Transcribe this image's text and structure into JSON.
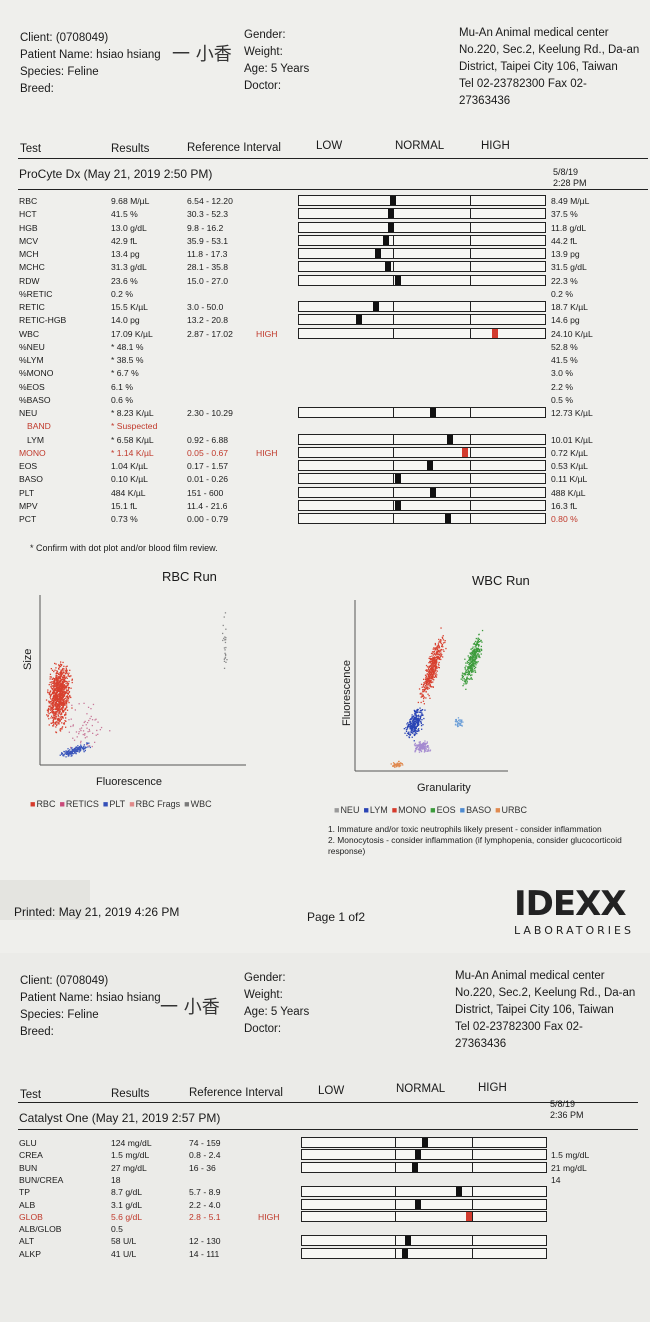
{
  "header": {
    "client_label": "Client:",
    "client_id": "(0708049)",
    "patient_label": "Patient Name:",
    "patient_name": "hsiao hsiang",
    "species_label": "Species:",
    "species": "Feline",
    "breed_label": "Breed:",
    "gender_label": "Gender:",
    "weight_label": "Weight:",
    "age_label": "Age:",
    "age": "5 Years",
    "doctor_label": "Doctor:",
    "clinic_name": "Mu-An Animal medical center",
    "clinic_addr1": "No.220, Sec.2, Keelung Rd., Da-an",
    "clinic_addr2": "District, Taipei City 106, Taiwan",
    "clinic_tel": "Tel 02-23782300  Fax 02-",
    "clinic_fax": "27363436",
    "signature": "一 小香"
  },
  "columns": {
    "test": "Test",
    "results": "Results",
    "reference": "Reference Interval",
    "low": "LOW",
    "normal": "NORMAL",
    "high": "HIGH"
  },
  "page1": {
    "section_title": "ProCyte Dx (May 21, 2019 2:50 PM)",
    "prev_date": "5/8/19",
    "prev_time": "2:28 PM",
    "rows": [
      {
        "test": "RBC",
        "result": "9.68 M/µL",
        "ref": "6.54 - 12.20",
        "flag": "",
        "prev": "8.49 M/µL",
        "pos": 0.38
      },
      {
        "test": "HCT",
        "result": "41.5 %",
        "ref": "30.3 - 52.3",
        "flag": "",
        "prev": "37.5 %",
        "pos": 0.37
      },
      {
        "test": "HGB",
        "result": "13.0 g/dL",
        "ref": "9.8 - 16.2",
        "flag": "",
        "prev": "11.8 g/dL",
        "pos": 0.37
      },
      {
        "test": "MCV",
        "result": "42.9 fL",
        "ref": "35.9 - 53.1",
        "flag": "",
        "prev": "44.2 fL",
        "pos": 0.35
      },
      {
        "test": "MCH",
        "result": "13.4 pg",
        "ref": "11.8 - 17.3",
        "flag": "",
        "prev": "13.9 pg",
        "pos": 0.32
      },
      {
        "test": "MCHC",
        "result": "31.3 g/dL",
        "ref": "28.1 - 35.8",
        "flag": "",
        "prev": "31.5 g/dL",
        "pos": 0.36
      },
      {
        "test": "RDW",
        "result": "23.6 %",
        "ref": "15.0 - 27.0",
        "flag": "",
        "prev": "22.3 %",
        "pos": 0.4
      },
      {
        "test": "%RETIC",
        "result": "0.2 %",
        "ref": "",
        "flag": "",
        "prev": "0.2 %",
        "pos": null
      },
      {
        "test": "RETIC",
        "result": "15.5 K/µL",
        "ref": "3.0 - 50.0",
        "flag": "",
        "prev": "18.7 K/µL",
        "pos": 0.31
      },
      {
        "test": "RETIC-HGB",
        "result": "14.0 pg",
        "ref": "13.2 - 20.8",
        "flag": "",
        "prev": "14.6 pg",
        "pos": 0.24
      },
      {
        "test": "WBC",
        "result": "17.09 K/µL",
        "ref": "2.87 - 17.02",
        "flag": "HIGH",
        "prev": "24.10 K/µL",
        "pos": 0.79
      },
      {
        "test": "%NEU",
        "result": "* 48.1 %",
        "ref": "",
        "flag": "",
        "prev": "52.8 %",
        "pos": null
      },
      {
        "test": "%LYM",
        "result": "* 38.5 %",
        "ref": "",
        "flag": "",
        "prev": "41.5 %",
        "pos": null
      },
      {
        "test": "%MONO",
        "result": "* 6.7 %",
        "ref": "",
        "flag": "",
        "prev": "3.0 %",
        "pos": null
      },
      {
        "test": "%EOS",
        "result": "6.1 %",
        "ref": "",
        "flag": "",
        "prev": "2.2 %",
        "pos": null
      },
      {
        "test": "%BASO",
        "result": "0.6 %",
        "ref": "",
        "flag": "",
        "prev": "0.5 %",
        "pos": null
      },
      {
        "test": "NEU",
        "result": "* 8.23 K/µL",
        "ref": "2.30 - 10.29",
        "flag": "",
        "prev": "12.73 K/µL",
        "pos": 0.54
      },
      {
        "test": "BAND",
        "result": "* Suspected",
        "ref": "",
        "flag": "",
        "prev": "",
        "pos": null,
        "red": true,
        "indent": true
      },
      {
        "test": "LYM",
        "result": "* 6.58 K/µL",
        "ref": "0.92 - 6.88",
        "flag": "",
        "prev": "10.01 K/µL",
        "pos": 0.61,
        "indent": true
      },
      {
        "test": "MONO",
        "result": "* 1.14 K/µL",
        "ref": "0.05 - 0.67",
        "flag": "HIGH",
        "prev": "0.72 K/µL",
        "pos": 0.67,
        "red": true
      },
      {
        "test": "EOS",
        "result": "1.04 K/µL",
        "ref": "0.17 - 1.57",
        "flag": "",
        "prev": "0.53 K/µL",
        "pos": 0.53
      },
      {
        "test": "BASO",
        "result": "0.10 K/µL",
        "ref": "0.01 - 0.26",
        "flag": "",
        "prev": "0.11 K/µL",
        "pos": 0.4
      },
      {
        "test": "PLT",
        "result": "484 K/µL",
        "ref": "151 - 600",
        "flag": "",
        "prev": "488 K/µL",
        "pos": 0.54
      },
      {
        "test": "MPV",
        "result": "15.1 fL",
        "ref": "11.4 - 21.6",
        "flag": "",
        "prev": "16.3 fL",
        "pos": 0.4
      },
      {
        "test": "PCT",
        "result": "0.73 %",
        "ref": "0.00 - 0.79",
        "flag": "",
        "prev": "0.80 %",
        "pos": 0.6,
        "prevred": true
      }
    ],
    "footnote": "* Confirm with dot plot and/or blood film review.",
    "rbc_title": "RBC Run",
    "rbc_xlabel": "Fluorescence",
    "rbc_ylabel": "Size",
    "rbc_legend": [
      "RBC",
      "RETICS",
      "PLT",
      "RBC Frags",
      "WBC"
    ],
    "wbc_title": "WBC Run",
    "wbc_xlabel": "Granularity",
    "wbc_ylabel": "Fluorescence",
    "wbc_legend": [
      "NEU",
      "LYM",
      "MONO",
      "EOS",
      "BASO",
      "URBC"
    ],
    "notes": [
      "1. Immature and/or toxic neutrophils likely present - consider inflammation",
      "2. Monocytosis - consider inflammation (if lymphopenia, consider glucocorticoid",
      "response)"
    ],
    "printed": "Printed: May 21, 2019 4:26 PM",
    "page_no": "Page 1 of2",
    "logo": "IDEXX",
    "logo_sub": "LABORATORIES"
  },
  "page2": {
    "section_title": "Catalyst One (May 21, 2019 2:57 PM)",
    "prev_date": "5/8/19",
    "prev_time": "2:36 PM",
    "rows": [
      {
        "test": "GLU",
        "result": "124 mg/dL",
        "ref": "74 - 159",
        "flag": "",
        "prev": "",
        "pos": 0.5
      },
      {
        "test": "CREA",
        "result": "1.5 mg/dL",
        "ref": "0.8 - 2.4",
        "flag": "",
        "prev": "1.5 mg/dL",
        "pos": 0.47
      },
      {
        "test": "BUN",
        "result": "27 mg/dL",
        "ref": "16 - 36",
        "flag": "",
        "prev": "21 mg/dL",
        "pos": 0.46
      },
      {
        "test": "BUN/CREA",
        "result": "18",
        "ref": "",
        "flag": "",
        "prev": "14",
        "pos": null
      },
      {
        "test": "TP",
        "result": "8.7 g/dL",
        "ref": "5.7 - 8.9",
        "flag": "",
        "prev": "",
        "pos": 0.64
      },
      {
        "test": "ALB",
        "result": "3.1 g/dL",
        "ref": "2.2 - 4.0",
        "flag": "",
        "prev": "",
        "pos": 0.47
      },
      {
        "test": "GLOB",
        "result": "5.6 g/dL",
        "ref": "2.8 - 5.1",
        "flag": "HIGH",
        "prev": "",
        "pos": 0.68,
        "red": true
      },
      {
        "test": "ALB/GLOB",
        "result": "0.5",
        "ref": "",
        "flag": "",
        "prev": "",
        "pos": null
      },
      {
        "test": "ALT",
        "result": "58 U/L",
        "ref": "12 - 130",
        "flag": "",
        "prev": "",
        "pos": 0.43
      },
      {
        "test": "ALKP",
        "result": "41 U/L",
        "ref": "14 - 111",
        "flag": "",
        "prev": "",
        "pos": 0.42
      }
    ]
  }
}
